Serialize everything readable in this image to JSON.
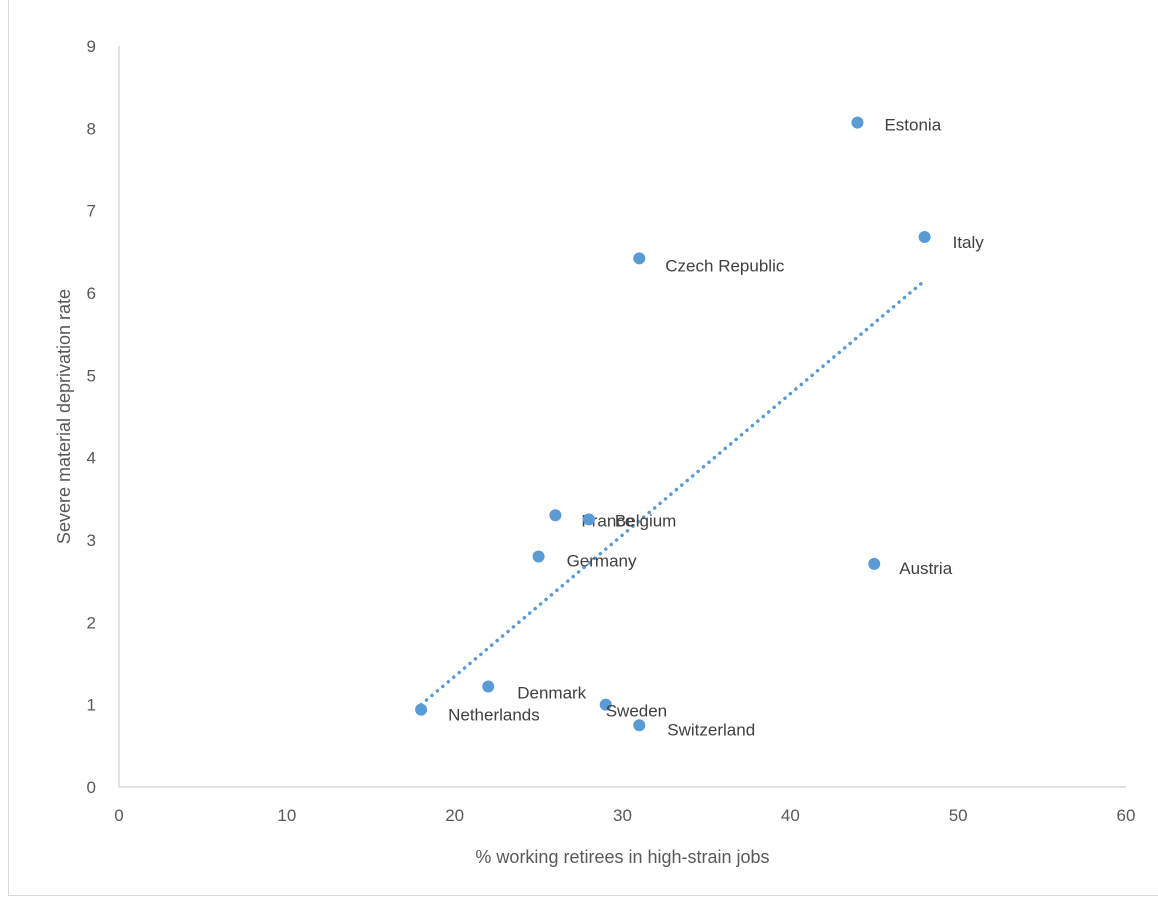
{
  "chart_data": {
    "type": "scatter",
    "title": "",
    "xlabel": "% working retirees in high-strain jobs",
    "ylabel": "Severe material deprivation rate",
    "xlim": [
      0,
      60
    ],
    "ylim": [
      0,
      9
    ],
    "xticks": [
      0,
      10,
      20,
      30,
      40,
      50,
      60
    ],
    "yticks": [
      0,
      1,
      2,
      3,
      4,
      5,
      6,
      7,
      8,
      9
    ],
    "grid": false,
    "legend": "none",
    "colors": {
      "marker": "#5b9bd5",
      "axis": "#d9d9d9",
      "text": "#595959"
    },
    "points": [
      {
        "label": "Estonia",
        "x": 44,
        "y": 8.07
      },
      {
        "label": "Italy",
        "x": 48,
        "y": 6.68
      },
      {
        "label": "Czech Republic",
        "x": 31,
        "y": 6.42
      },
      {
        "label": "France",
        "x": 26,
        "y": 3.3
      },
      {
        "label": "Belgium",
        "x": 28,
        "y": 3.25
      },
      {
        "label": "Germany",
        "x": 25,
        "y": 2.8
      },
      {
        "label": "Austria",
        "x": 45,
        "y": 2.71
      },
      {
        "label": "Denmark",
        "x": 22,
        "y": 1.22
      },
      {
        "label": "Sweden",
        "x": 29,
        "y": 1.0
      },
      {
        "label": "Netherlands",
        "x": 18,
        "y": 0.94
      },
      {
        "label": "Switzerland",
        "x": 31,
        "y": 0.75
      }
    ],
    "trendline": {
      "type": "linear",
      "style": "dotted",
      "x": [
        18,
        48
      ],
      "y": [
        1.0,
        6.15
      ]
    }
  }
}
